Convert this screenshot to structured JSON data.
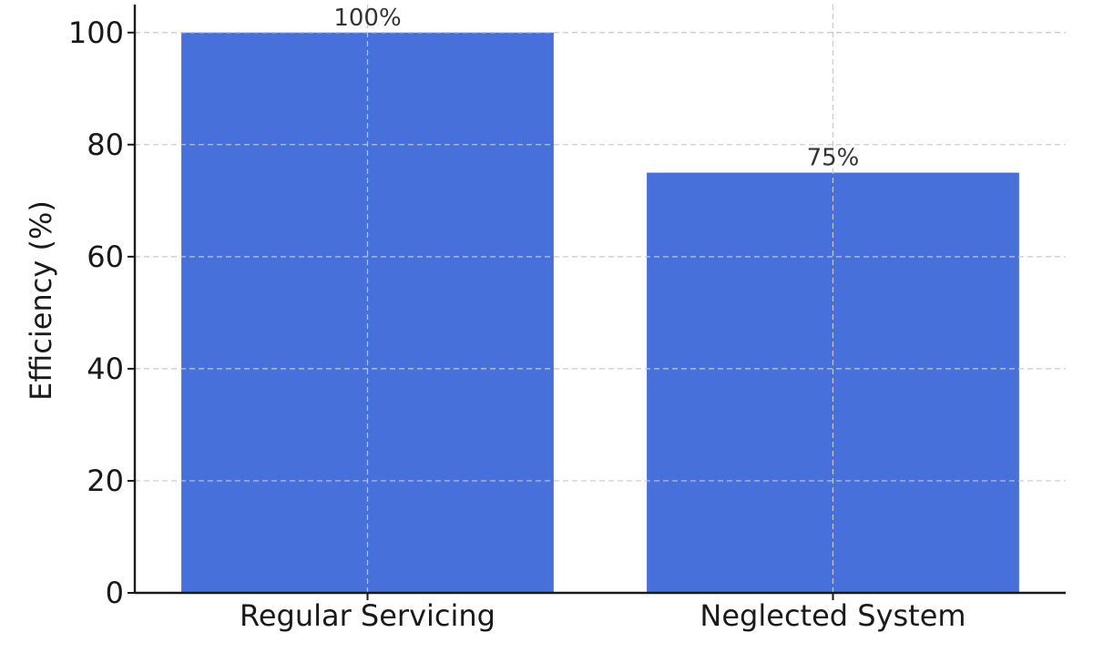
{
  "chart_data": {
    "type": "bar",
    "title": "",
    "xlabel": "",
    "ylabel": "Efficiency (%)",
    "categories": [
      "Regular Servicing",
      "Neglected System"
    ],
    "values": [
      100,
      75
    ],
    "data_labels": [
      "100%",
      "75%"
    ],
    "ylim": [
      0,
      105
    ],
    "yticks": [
      0,
      20,
      40,
      60,
      80,
      100
    ],
    "grid": true,
    "colors": {
      "bar": "#4870da",
      "grid": "#c8c8c8",
      "axis": "#1a1a1a",
      "text": "#1a1a1a",
      "data_label": "#333333"
    }
  }
}
